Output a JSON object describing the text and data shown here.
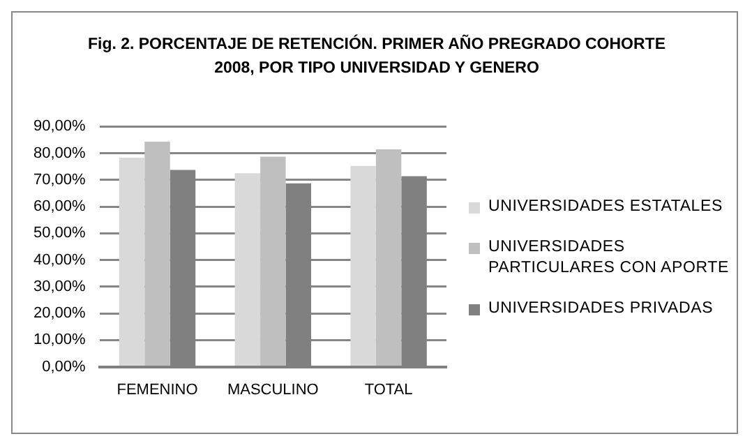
{
  "chart_data": {
    "type": "bar",
    "title": "Fig. 2. PORCENTAJE DE RETENCIÓN. PRIMER AÑO PREGRADO COHORTE 2008, POR TIPO UNIVERSIDAD Y GENERO",
    "categories": [
      "FEMENINO",
      "MASCULINO",
      "TOTAL"
    ],
    "series": [
      {
        "name": "UNIVERSIDADES ESTATALES",
        "color": "#d9d9d9",
        "values": [
          78.3,
          72.5,
          75.2
        ]
      },
      {
        "name": "UNIVERSIDADES PARTICULARES CON APORTE",
        "color": "#bfbfbf",
        "values": [
          84.3,
          78.7,
          81.4
        ]
      },
      {
        "name": "UNIVERSIDADES PRIVADAS",
        "color": "#808080",
        "values": [
          73.7,
          68.7,
          71.4
        ]
      }
    ],
    "ylim": [
      0,
      90
    ],
    "yticks": [
      {
        "value": 0,
        "label": "0,00%"
      },
      {
        "value": 10,
        "label": "10,00%"
      },
      {
        "value": 20,
        "label": "20,00%"
      },
      {
        "value": 30,
        "label": "30,00%"
      },
      {
        "value": 40,
        "label": "40,00%"
      },
      {
        "value": 50,
        "label": "50,00%"
      },
      {
        "value": 60,
        "label": "60,00%"
      },
      {
        "value": 70,
        "label": "70,00%"
      },
      {
        "value": 80,
        "label": "80,00%"
      },
      {
        "value": 90,
        "label": "90,00%"
      }
    ],
    "grid": "y",
    "legend": "right"
  }
}
